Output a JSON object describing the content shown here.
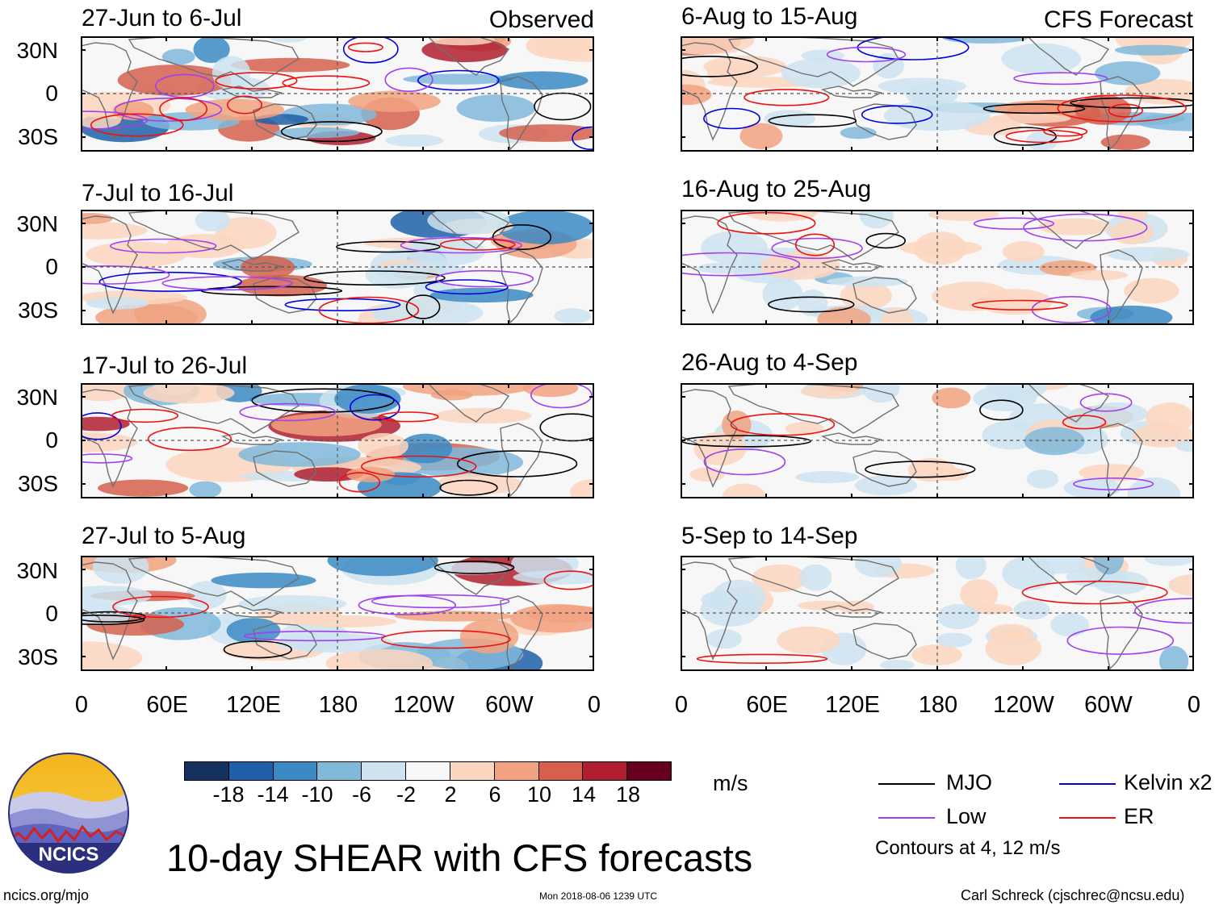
{
  "main_title": "10-day SHEAR with CFS forecasts",
  "left_column": {
    "tag": "Observed",
    "panels": [
      {
        "title": "27-Jun to 6-Jul"
      },
      {
        "title": "7-Jul to 16-Jul"
      },
      {
        "title": "17-Jul to 26-Jul"
      },
      {
        "title": "27-Jul to 5-Aug"
      }
    ]
  },
  "right_column": {
    "tag": "CFS Forecast",
    "panels": [
      {
        "title": "6-Aug to 15-Aug"
      },
      {
        "title": "16-Aug to 25-Aug"
      },
      {
        "title": "26-Aug to 4-Sep"
      },
      {
        "title": "5-Sep to 14-Sep"
      }
    ]
  },
  "lat_labels": [
    "30N",
    "0",
    "30S"
  ],
  "lon_labels": [
    "0",
    "60E",
    "120E",
    "180",
    "120W",
    "60W",
    "0"
  ],
  "colorbar": {
    "units": "m/s",
    "ticks": [
      "-18",
      "-14",
      "-10",
      "-6",
      "-2",
      "2",
      "6",
      "10",
      "14",
      "18"
    ],
    "colors": [
      "#15315f",
      "#1f5fa8",
      "#3b8ac4",
      "#80b9da",
      "#cde3f0",
      "#f7f7f7",
      "#fbd6bf",
      "#f1a280",
      "#d6604d",
      "#b01e2f",
      "#67001f"
    ]
  },
  "legend": {
    "items": [
      {
        "label": "MJO",
        "color": "#000000"
      },
      {
        "label": "Kelvin x2",
        "color": "#0000dd"
      },
      {
        "label": "Low",
        "color": "#a040ee"
      },
      {
        "label": "ER",
        "color": "#ee1111"
      }
    ],
    "note": "Contours at 4, 12 m/s"
  },
  "logo": {
    "text": "NCICS"
  },
  "footer": {
    "left": "ncics.org/mjo",
    "center": "Mon 2018-08-06 1239 UTC",
    "right": "Carl Schreck (cjschrec@ncsu.edu)"
  }
}
